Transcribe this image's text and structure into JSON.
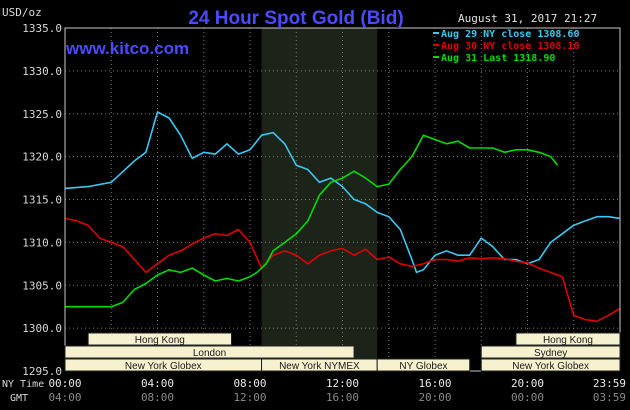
{
  "chart_data": {
    "type": "line",
    "title": "24 Hour Spot Gold (Bid)",
    "website": "www.kitco.com",
    "timestamp": "August 31, 2017 21:27",
    "ylabel": "USD/oz",
    "ylim": [
      1295.0,
      1335.0
    ],
    "y_ticks": [
      "1295.0",
      "1300.0",
      "1305.0",
      "1310.0",
      "1315.0",
      "1320.0",
      "1325.0",
      "1330.0",
      "1335.0"
    ],
    "xlim": [
      0,
      24
    ],
    "x_tick_hours": [
      0,
      4,
      8,
      12,
      16,
      20,
      23.983
    ],
    "x_ticks_ny": [
      "00:00",
      "04:00",
      "08:00",
      "12:00",
      "16:00",
      "20:00",
      "23:59"
    ],
    "x_ticks_gmt": [
      "04:00",
      "08:00",
      "12:00",
      "16:00",
      "20:00",
      "00:00",
      "03:59"
    ],
    "x_row_label_ny": "NY Time",
    "x_row_label_gmt": "GMT",
    "grid": true,
    "shaded_period": [
      8.5,
      13.5
    ],
    "colors": {
      "aug29": "#3ac8f4",
      "aug30": "#e00000",
      "aug31": "#00dc00",
      "frame": "#c8c8c8",
      "grid": "#777777",
      "shade": "#1c2318",
      "session_fill": "#f6f2d0"
    },
    "legend": [
      {
        "key": "aug29",
        "label": "Aug 29 NY close 1308.60"
      },
      {
        "key": "aug30",
        "label": "Aug 30 NY close 1308.10"
      },
      {
        "key": "aug31",
        "label": "Aug 31 Last 1318.90"
      }
    ],
    "series": [
      {
        "name": "Aug 29 NY close 1308.60",
        "key": "aug29",
        "x": [
          0,
          1,
          2,
          3,
          3.5,
          4,
          4.5,
          5,
          5.5,
          6,
          6.5,
          7,
          7.5,
          8,
          8.5,
          9,
          9.5,
          10,
          10.5,
          11,
          11.5,
          12,
          12.5,
          13,
          13.5,
          14,
          14.5,
          15,
          15.2,
          15.5,
          16,
          16.5,
          17,
          17.5,
          18,
          18.5,
          19,
          19.5,
          20,
          20.5,
          21,
          21.5,
          22,
          22.5,
          23,
          23.5,
          24
        ],
        "values": [
          1316.3,
          1316.5,
          1317.0,
          1319.5,
          1320.5,
          1325.2,
          1324.5,
          1322.5,
          1319.8,
          1320.5,
          1320.3,
          1321.5,
          1320.3,
          1320.8,
          1322.5,
          1322.8,
          1321.5,
          1319.0,
          1318.5,
          1317.0,
          1317.5,
          1316.5,
          1315.0,
          1314.5,
          1313.5,
          1313.0,
          1311.5,
          1308.0,
          1306.5,
          1306.8,
          1308.5,
          1309.0,
          1308.5,
          1308.5,
          1310.5,
          1309.5,
          1308.0,
          1308.0,
          1307.5,
          1308.0,
          1310.0,
          1311.0,
          1312.0,
          1312.5,
          1313.0,
          1313.0,
          1312.8
        ]
      },
      {
        "name": "Aug 30 NY close 1308.10",
        "key": "aug30",
        "x": [
          0,
          0.5,
          1,
          1.5,
          2,
          2.5,
          3,
          3.5,
          4,
          4.5,
          5,
          5.5,
          6,
          6.5,
          7,
          7.5,
          8,
          8.5,
          9,
          9.5,
          10,
          10.5,
          11,
          11.5,
          12,
          12.5,
          13,
          13.5,
          14,
          14.5,
          15,
          15.5,
          16,
          16.5,
          17,
          17.5,
          18,
          18.5,
          19,
          19.5,
          20,
          20.5,
          21,
          21.5,
          22,
          22.5,
          23,
          23.5,
          24
        ],
        "values": [
          1312.8,
          1312.5,
          1312.0,
          1310.5,
          1310.0,
          1309.5,
          1308.0,
          1306.5,
          1307.5,
          1308.5,
          1309.0,
          1309.8,
          1310.5,
          1311.0,
          1310.8,
          1311.5,
          1310.0,
          1307.0,
          1308.5,
          1309.0,
          1308.5,
          1307.5,
          1308.5,
          1309.0,
          1309.3,
          1308.5,
          1309.2,
          1308.0,
          1308.3,
          1307.5,
          1307.2,
          1307.5,
          1308.0,
          1308.0,
          1307.8,
          1308.2,
          1308.1,
          1308.2,
          1308.1,
          1307.8,
          1307.6,
          1307.0,
          1306.5,
          1306.0,
          1301.5,
          1301.0,
          1300.8,
          1301.5,
          1302.3
        ]
      },
      {
        "name": "Aug 31 Last 1318.90",
        "key": "aug31",
        "x": [
          0,
          1,
          2,
          2.5,
          3,
          3.5,
          4,
          4.5,
          5,
          5.5,
          6,
          6.5,
          7,
          7.5,
          8,
          8.3,
          8.7,
          9,
          9.5,
          10,
          10.5,
          11,
          11.5,
          12,
          12.5,
          13,
          13.5,
          14,
          14.5,
          15,
          15.5,
          16,
          16.5,
          17,
          17.5,
          18,
          18.5,
          19,
          19.5,
          20,
          20.5,
          21,
          21.3
        ],
        "values": [
          1302.5,
          1302.5,
          1302.5,
          1303.0,
          1304.5,
          1305.2,
          1306.2,
          1306.8,
          1306.5,
          1307.0,
          1306.2,
          1305.5,
          1305.8,
          1305.5,
          1306.0,
          1306.5,
          1307.5,
          1309.0,
          1310.0,
          1311.0,
          1312.5,
          1315.5,
          1317.0,
          1317.5,
          1318.3,
          1317.5,
          1316.5,
          1316.8,
          1318.5,
          1320.0,
          1322.5,
          1322.0,
          1321.5,
          1321.8,
          1321.0,
          1321.0,
          1321.0,
          1320.5,
          1320.8,
          1320.8,
          1320.5,
          1320.0,
          1319.0
        ]
      }
    ],
    "sessions": [
      {
        "label": "Hong Kong",
        "start": 1,
        "end": 7.2,
        "row": 0
      },
      {
        "label": "London",
        "start": 0,
        "end": 12.5,
        "row": 1
      },
      {
        "label": "New York Globex",
        "start": 0,
        "end": 8.5,
        "row": 2
      },
      {
        "label": "New York NYMEX",
        "start": 8.5,
        "end": 13.5,
        "row": 2
      },
      {
        "label": "NY Globex",
        "start": 13.5,
        "end": 17.5,
        "row": 2
      },
      {
        "label": "Hong Kong",
        "start": 19.5,
        "end": 24,
        "row": 0
      },
      {
        "label": "Sydney",
        "start": 18,
        "end": 24,
        "row": 1
      },
      {
        "label": "New York Globex",
        "start": 18,
        "end": 24,
        "row": 2
      }
    ]
  }
}
